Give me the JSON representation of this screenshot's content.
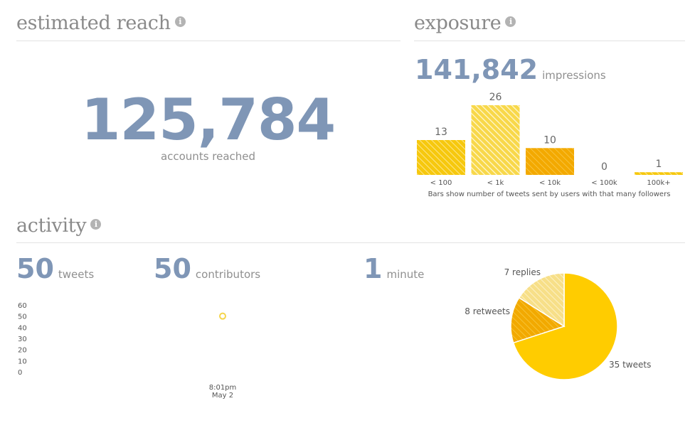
{
  "reach": {
    "title": "estimated reach",
    "value": "125,784",
    "caption": "accounts reached"
  },
  "exposure": {
    "title": "exposure",
    "value": "141,842",
    "unit": "impressions"
  },
  "activity": {
    "title": "activity",
    "stats": [
      {
        "value": "50",
        "label": "tweets"
      },
      {
        "value": "50",
        "label": "contributors"
      },
      {
        "value": "1",
        "label": "minute"
      }
    ]
  },
  "chart_data": [
    {
      "type": "bar",
      "categories": [
        "< 100",
        "< 1k",
        "< 10k",
        "< 100k",
        "100k+"
      ],
      "values": [
        13,
        26,
        10,
        0,
        1
      ],
      "note": "Bars show number of tweets sent by users with that many followers",
      "colors": [
        "#f4c20d",
        "#f4c20d",
        "#f0a500",
        "#f4c20d",
        "#f4c20d"
      ]
    },
    {
      "type": "scatter",
      "y_ticks": [
        "0",
        "10",
        "20",
        "30",
        "40",
        "50",
        "60"
      ],
      "ylim": [
        0,
        60
      ],
      "x_label_time": "8:01pm",
      "x_label_date": "May 2",
      "points": [
        {
          "x": "8:01pm May 2",
          "y": 50
        }
      ],
      "color": "#f5d54c"
    },
    {
      "type": "pie",
      "slices": [
        {
          "label": "35 tweets",
          "value": 35,
          "color": "#ffcc00"
        },
        {
          "label": "7 replies",
          "value": 7,
          "color": "#f2a900"
        },
        {
          "label": "8 retweets",
          "value": 8,
          "color": "#f7e08a"
        }
      ]
    }
  ]
}
